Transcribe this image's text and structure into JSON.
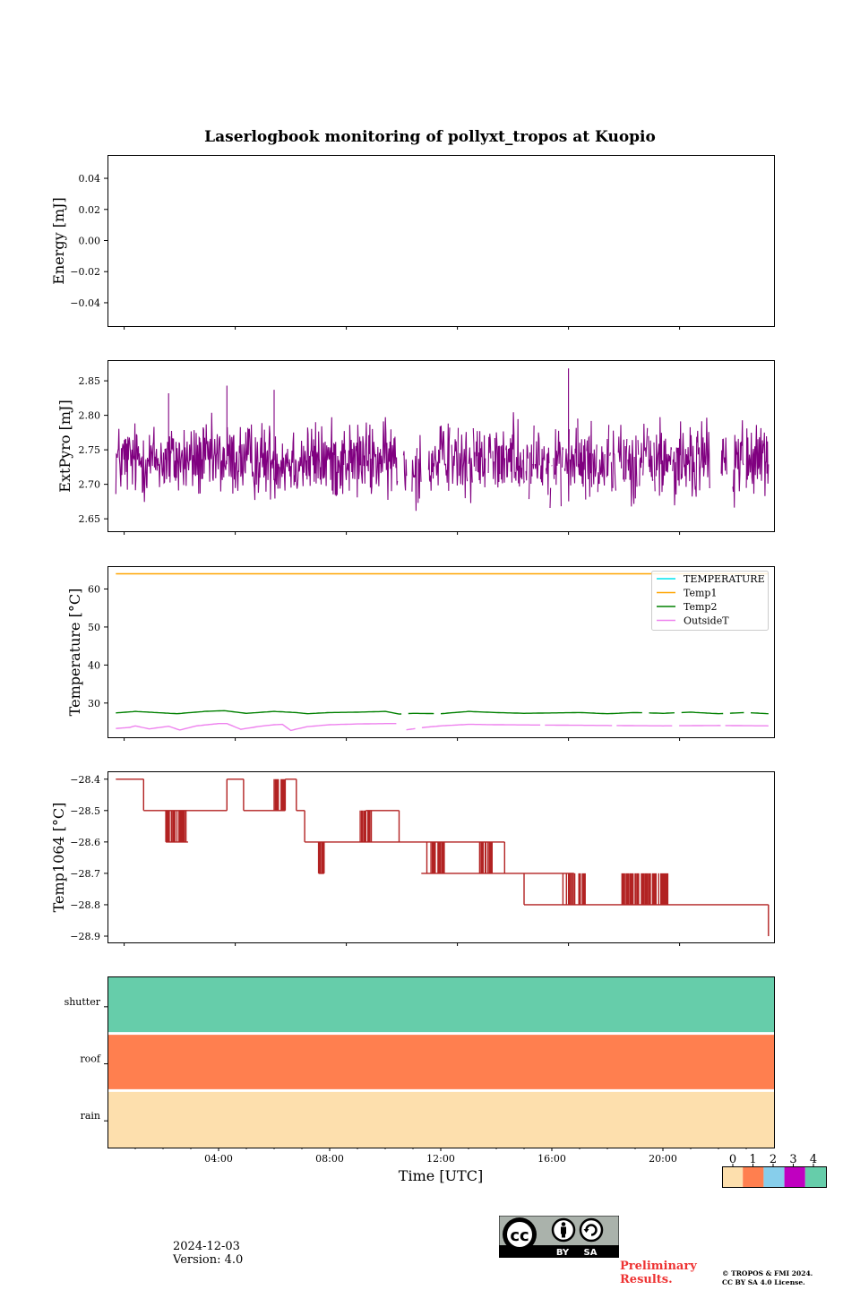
{
  "chart_data": [
    {
      "type": "line",
      "title": "Laserlogbook monitoring of pollyxt_tropos at Kuopio",
      "ylabel": "Energy [mJ]",
      "ylim": [
        -0.055,
        0.055
      ],
      "yticks": [
        0.04,
        0.02,
        0.0,
        -0.02,
        -0.04
      ],
      "ytick_labels": [
        "0.04",
        "0.02",
        "0.00",
        "−0.02",
        "−0.04"
      ],
      "series": []
    },
    {
      "type": "line",
      "ylabel": "ExtPyro [mJ]",
      "ylim": [
        2.632,
        2.88
      ],
      "yticks": [
        2.65,
        2.7,
        2.75,
        2.8,
        2.85
      ],
      "ytick_labels": [
        "2.65",
        "2.70",
        "2.75",
        "2.80",
        "2.85"
      ],
      "series": [
        {
          "color": "#800080",
          "x_range_hours": [
            0.3,
            23.8
          ],
          "value_range": [
            2.643,
            2.868
          ],
          "mean": 2.735,
          "noisy": true,
          "spikes": [
            [
              16.6,
              2.868
            ],
            [
              4.3,
              2.843
            ],
            [
              6.0,
              2.837
            ],
            [
              2.2,
              2.832
            ]
          ],
          "gaps_hours": [
            [
              10.45,
              10.65
            ],
            [
              10.85,
              10.95
            ],
            [
              11.3,
              11.55
            ],
            [
              21.7,
              22.1
            ],
            [
              22.3,
              22.5
            ],
            [
              22.9,
              23.0
            ]
          ]
        }
      ]
    },
    {
      "type": "line",
      "ylabel": "Temperature [°C]",
      "ylim": [
        21,
        66
      ],
      "yticks": [
        30,
        40,
        50,
        60
      ],
      "ytick_labels": [
        "30",
        "40",
        "50",
        "60"
      ],
      "legend_position": "top-right",
      "series": [
        {
          "name": "TEMPERATURE",
          "color": "#00e5ee",
          "points": []
        },
        {
          "name": "Temp1",
          "color": "#ffa500",
          "points": [
            [
              0.3,
              64
            ],
            [
              23.8,
              64
            ]
          ]
        },
        {
          "name": "Temp2",
          "color": "#008000",
          "points": [
            [
              0.3,
              27.4
            ],
            [
              1.0,
              27.8
            ],
            [
              2.5,
              27.2
            ],
            [
              3.5,
              27.8
            ],
            [
              4.2,
              28.0
            ],
            [
              5.0,
              27.3
            ],
            [
              6.0,
              27.8
            ],
            [
              6.8,
              27.5
            ],
            [
              7.2,
              27.2
            ],
            [
              8.0,
              27.5
            ],
            [
              9.0,
              27.6
            ],
            [
              10.0,
              27.8
            ],
            [
              10.5,
              27.1
            ],
            [
              11.0,
              27.3
            ],
            [
              12.0,
              27.2
            ],
            [
              13.0,
              27.8
            ],
            [
              14.0,
              27.5
            ],
            [
              15.0,
              27.3
            ],
            [
              16.0,
              27.4
            ],
            [
              17.0,
              27.5
            ],
            [
              18.0,
              27.2
            ],
            [
              19.0,
              27.5
            ],
            [
              20.0,
              27.3
            ],
            [
              21.0,
              27.6
            ],
            [
              22.0,
              27.2
            ],
            [
              23.0,
              27.5
            ],
            [
              23.8,
              27.2
            ]
          ],
          "gaps_hours": [
            [
              10.6,
              10.75
            ],
            [
              11.8,
              11.95
            ],
            [
              19.3,
              19.45
            ],
            [
              20.5,
              20.6
            ],
            [
              22.2,
              22.35
            ],
            [
              23.0,
              23.1
            ]
          ]
        },
        {
          "name": "OutsideT",
          "color": "#ee82ee",
          "points": [
            [
              0.3,
              23.3
            ],
            [
              0.8,
              23.6
            ],
            [
              1.0,
              24.0
            ],
            [
              1.5,
              23.2
            ],
            [
              2.2,
              23.9
            ],
            [
              2.6,
              22.9
            ],
            [
              3.2,
              24.0
            ],
            [
              4.0,
              24.6
            ],
            [
              4.3,
              24.6
            ],
            [
              4.8,
              23.1
            ],
            [
              5.5,
              23.9
            ],
            [
              6.0,
              24.3
            ],
            [
              6.3,
              24.4
            ],
            [
              6.6,
              22.8
            ],
            [
              7.2,
              23.8
            ],
            [
              8.0,
              24.3
            ],
            [
              9.0,
              24.5
            ],
            [
              10.0,
              24.6
            ],
            [
              10.4,
              24.6
            ],
            [
              10.6,
              22.8
            ],
            [
              11.0,
              23.2
            ],
            [
              11.4,
              23.6
            ],
            [
              12.0,
              24.0
            ],
            [
              13.0,
              24.4
            ],
            [
              14.0,
              24.3
            ],
            [
              16.0,
              24.2
            ],
            [
              18.0,
              24.1
            ],
            [
              20.0,
              24.0
            ],
            [
              22.0,
              24.1
            ],
            [
              23.8,
              24.0
            ]
          ],
          "gaps_hours": [
            [
              10.5,
              10.7
            ],
            [
              11.1,
              11.25
            ],
            [
              15.6,
              15.7
            ],
            [
              18.2,
              18.3
            ],
            [
              20.4,
              20.5
            ],
            [
              22.1,
              22.2
            ]
          ]
        }
      ]
    },
    {
      "type": "line",
      "ylabel": "Temp1064 [°C]",
      "ylim": [
        -28.92,
        -28.375
      ],
      "yticks": [
        -28.4,
        -28.5,
        -28.6,
        -28.7,
        -28.8,
        -28.9
      ],
      "ytick_labels": [
        "−28.4",
        "−28.5",
        "−28.6",
        "−28.7",
        "−28.8",
        "−28.9"
      ],
      "series": [
        {
          "color": "#b22222",
          "segments": [
            [
              0.3,
              1.3,
              -28.4
            ],
            [
              1.3,
              4.3,
              -28.5
            ],
            [
              4.3,
              4.9,
              -28.4
            ],
            [
              4.9,
              6.4,
              -28.5
            ],
            [
              6.4,
              6.8,
              -28.4
            ],
            [
              6.8,
              7.1,
              -28.5
            ],
            [
              7.1,
              11.3,
              -28.6
            ],
            [
              8.1,
              9.3,
              -28.6
            ],
            [
              9.3,
              10.5,
              -28.5
            ],
            [
              10.5,
              11.3,
              -28.6
            ],
            [
              11.3,
              14.3,
              -28.6
            ],
            [
              11.3,
              15.0,
              -28.7
            ],
            [
              15.0,
              16.8,
              -28.7
            ],
            [
              15.0,
              23.8,
              -28.8
            ]
          ],
          "flicker_ranges": [
            [
              2.1,
              2.6,
              -28.5,
              -28.6
            ],
            [
              2.6,
              2.9,
              -28.5,
              -28.6
            ],
            [
              6.0,
              6.4,
              -28.4,
              -28.5
            ],
            [
              7.6,
              7.8,
              -28.6,
              -28.7
            ],
            [
              9.1,
              9.5,
              -28.5,
              -28.6
            ],
            [
              11.5,
              12.2,
              -28.6,
              -28.7
            ],
            [
              13.4,
              13.9,
              -28.6,
              -28.7
            ],
            [
              16.4,
              17.2,
              -28.7,
              -28.8
            ],
            [
              18.5,
              20.2,
              -28.7,
              -28.8
            ]
          ],
          "end_drop": [
            23.8,
            -28.9
          ]
        }
      ]
    },
    {
      "type": "heatmap",
      "xlabel": "Time [UTC]",
      "xlim_hours": [
        0,
        24
      ],
      "xticks": [
        "04:00",
        "08:00",
        "12:00",
        "16:00",
        "20:00"
      ],
      "rows": [
        "shutter",
        "roof",
        "rain"
      ],
      "row_values": [
        4,
        1,
        0
      ],
      "colorbar": {
        "ticks": [
          "0",
          "1",
          "2",
          "3",
          "4"
        ],
        "colors": [
          "#fddfad",
          "#ff7f4f",
          "#87ceeb",
          "#c000c0",
          "#66cdaa"
        ]
      }
    }
  ],
  "footer": {
    "date": "2024-12-03",
    "version": "Version: 4.0",
    "preliminary_line1": "Preliminary",
    "preliminary_line2": "Results.",
    "copyright_line1": "© TROPOS & FMI 2024.",
    "copyright_line2": "CC BY SA 4.0 License.",
    "license_badge_by": "BY",
    "license_badge_sa": "SA"
  }
}
